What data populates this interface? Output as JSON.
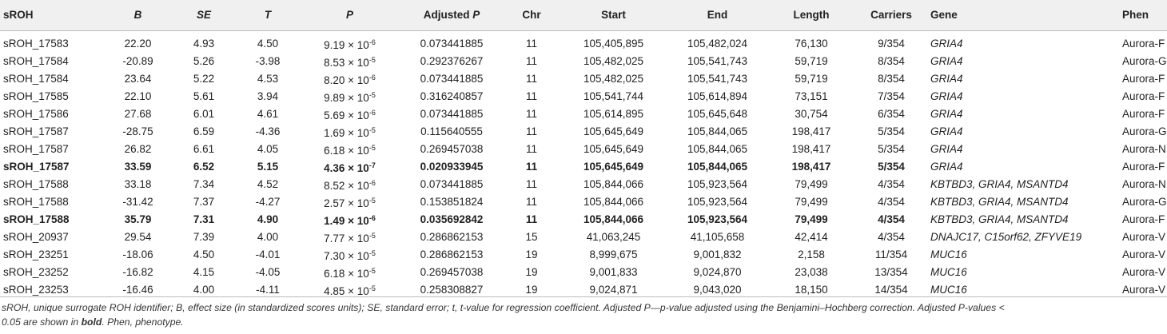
{
  "columns": [
    {
      "label": "sROH",
      "italic": false
    },
    {
      "label": "B",
      "italic": true
    },
    {
      "label": "SE",
      "italic": true
    },
    {
      "label": "T",
      "italic": true
    },
    {
      "label": "P",
      "italic": true
    },
    {
      "label": "Adjusted",
      "suffix": "P"
    },
    {
      "label": "Chr"
    },
    {
      "label": "Start"
    },
    {
      "label": "End"
    },
    {
      "label": "Length"
    },
    {
      "label": "Carriers"
    },
    {
      "label": "Gene"
    },
    {
      "label": "Phen"
    }
  ],
  "rows": [
    {
      "id": "sROH_17583",
      "b": "22.20",
      "se": "4.93",
      "t": "4.50",
      "p_base": "9.19 × 10",
      "p_exp": "-6",
      "adj": "0.073441885",
      "chr": "11",
      "start": "105,405,895",
      "end": "105,482,024",
      "length": "76,130",
      "carriers": "9/354",
      "gene": "GRIA4",
      "phen": "Aurora-F",
      "bold": false
    },
    {
      "id": "sROH_17584",
      "b": "-20.89",
      "se": "5.26",
      "t": "-3.98",
      "p_base": "8.53 × 10",
      "p_exp": "-5",
      "adj": "0.292376267",
      "chr": "11",
      "start": "105,482,025",
      "end": "105,541,743",
      "length": "59,719",
      "carriers": "8/354",
      "gene": "GRIA4",
      "phen": "Aurora-G",
      "bold": false
    },
    {
      "id": "sROH_17584",
      "b": "23.64",
      "se": "5.22",
      "t": "4.53",
      "p_base": "8.20 × 10",
      "p_exp": "-6",
      "adj": "0.073441885",
      "chr": "11",
      "start": "105,482,025",
      "end": "105,541,743",
      "length": "59,719",
      "carriers": "8/354",
      "gene": "GRIA4",
      "phen": "Aurora-F",
      "bold": false
    },
    {
      "id": "sROH_17585",
      "b": "22.10",
      "se": "5.61",
      "t": "3.94",
      "p_base": "9.89 × 10",
      "p_exp": "-5",
      "adj": "0.316240857",
      "chr": "11",
      "start": "105,541,744",
      "end": "105,614,894",
      "length": "73,151",
      "carriers": "7/354",
      "gene": "GRIA4",
      "phen": "Aurora-F",
      "bold": false
    },
    {
      "id": "sROH_17586",
      "b": "27.68",
      "se": "6.01",
      "t": "4.61",
      "p_base": "5.69 × 10",
      "p_exp": "-6",
      "adj": "0.073441885",
      "chr": "11",
      "start": "105,614,895",
      "end": "105,645,648",
      "length": "30,754",
      "carriers": "6/354",
      "gene": "GRIA4",
      "phen": "Aurora-F",
      "bold": false
    },
    {
      "id": "sROH_17587",
      "b": "-28.75",
      "se": "6.59",
      "t": "-4.36",
      "p_base": "1.69 × 10",
      "p_exp": "-5",
      "adj": "0.115640555",
      "chr": "11",
      "start": "105,645,649",
      "end": "105,844,065",
      "length": "198,417",
      "carriers": "5/354",
      "gene": "GRIA4",
      "phen": "Aurora-G",
      "bold": false
    },
    {
      "id": "sROH_17587",
      "b": "26.82",
      "se": "6.61",
      "t": "4.05",
      "p_base": "6.18 × 10",
      "p_exp": "-5",
      "adj": "0.269457038",
      "chr": "11",
      "start": "105,645,649",
      "end": "105,844,065",
      "length": "198,417",
      "carriers": "5/354",
      "gene": "GRIA4",
      "phen": "Aurora-N",
      "bold": false
    },
    {
      "id": "sROH_17587",
      "b": "33.59",
      "se": "6.52",
      "t": "5.15",
      "p_base": "4.36 × 10",
      "p_exp": "-7",
      "adj": "0.020933945",
      "chr": "11",
      "start": "105,645,649",
      "end": "105,844,065",
      "length": "198,417",
      "carriers": "5/354",
      "gene": "GRIA4",
      "phen": "Aurora-F",
      "bold": true
    },
    {
      "id": "sROH_17588",
      "b": "33.18",
      "se": "7.34",
      "t": "4.52",
      "p_base": "8.52 × 10",
      "p_exp": "-6",
      "adj": "0.073441885",
      "chr": "11",
      "start": "105,844,066",
      "end": "105,923,564",
      "length": "79,499",
      "carriers": "4/354",
      "gene": "KBTBD3, GRIA4, MSANTD4",
      "phen": "Aurora-N",
      "bold": false
    },
    {
      "id": "sROH_17588",
      "b": "-31.42",
      "se": "7.37",
      "t": "-4.27",
      "p_base": "2.57 × 10",
      "p_exp": "-5",
      "adj": "0.153851824",
      "chr": "11",
      "start": "105,844,066",
      "end": "105,923,564",
      "length": "79,499",
      "carriers": "4/354",
      "gene": "KBTBD3, GRIA4, MSANTD4",
      "phen": "Aurora-G",
      "bold": false
    },
    {
      "id": "sROH_17588",
      "b": "35.79",
      "se": "7.31",
      "t": "4.90",
      "p_base": "1.49 × 10",
      "p_exp": "-6",
      "adj": "0.035692842",
      "chr": "11",
      "start": "105,844,066",
      "end": "105,923,564",
      "length": "79,499",
      "carriers": "4/354",
      "gene": "KBTBD3, GRIA4, MSANTD4",
      "phen": "Aurora-F",
      "bold": true
    },
    {
      "id": "sROH_20937",
      "b": "29.54",
      "se": "7.39",
      "t": "4.00",
      "p_base": "7.77 × 10",
      "p_exp": "-5",
      "adj": "0.286862153",
      "chr": "15",
      "start": "41,063,245",
      "end": "41,105,658",
      "length": "42,414",
      "carriers": "4/354",
      "gene": "DNAJC17, C15orf62, ZFYVE19",
      "phen": "Aurora-V",
      "bold": false
    },
    {
      "id": "sROH_23251",
      "b": "-18.06",
      "se": "4.50",
      "t": "-4.01",
      "p_base": "7.30 × 10",
      "p_exp": "-5",
      "adj": "0.286862153",
      "chr": "19",
      "start": "8,999,675",
      "end": "9,001,832",
      "length": "2,158",
      "carriers": "11/354",
      "gene": "MUC16",
      "phen": "Aurora-V",
      "bold": false
    },
    {
      "id": "sROH_23252",
      "b": "-16.82",
      "se": "4.15",
      "t": "-4.05",
      "p_base": "6.18 × 10",
      "p_exp": "-5",
      "adj": "0.269457038",
      "chr": "19",
      "start": "9,001,833",
      "end": "9,024,870",
      "length": "23,038",
      "carriers": "13/354",
      "gene": "MUC16",
      "phen": "Aurora-V",
      "bold": false
    },
    {
      "id": "sROH_23253",
      "b": "-16.46",
      "se": "4.00",
      "t": "-4.11",
      "p_base": "4.85 × 10",
      "p_exp": "-5",
      "adj": "0.258308827",
      "chr": "19",
      "start": "9,024,871",
      "end": "9,043,020",
      "length": "18,150",
      "carriers": "14/354",
      "gene": "MUC16",
      "phen": "Aurora-V",
      "bold": false
    }
  ],
  "footnote": {
    "line1": "sROH, unique surrogate ROH identifier; B, effect size (in standardized scores units); SE, standard error; t, t-value for regression coefficient. Adjusted P—p-value adjusted using the Benjamini–Hochberg correction. Adjusted P-values <",
    "line2_pre": "0.05 are shown in ",
    "line2_bold": "bold",
    "line2_post": ". Phen, phenotype."
  }
}
